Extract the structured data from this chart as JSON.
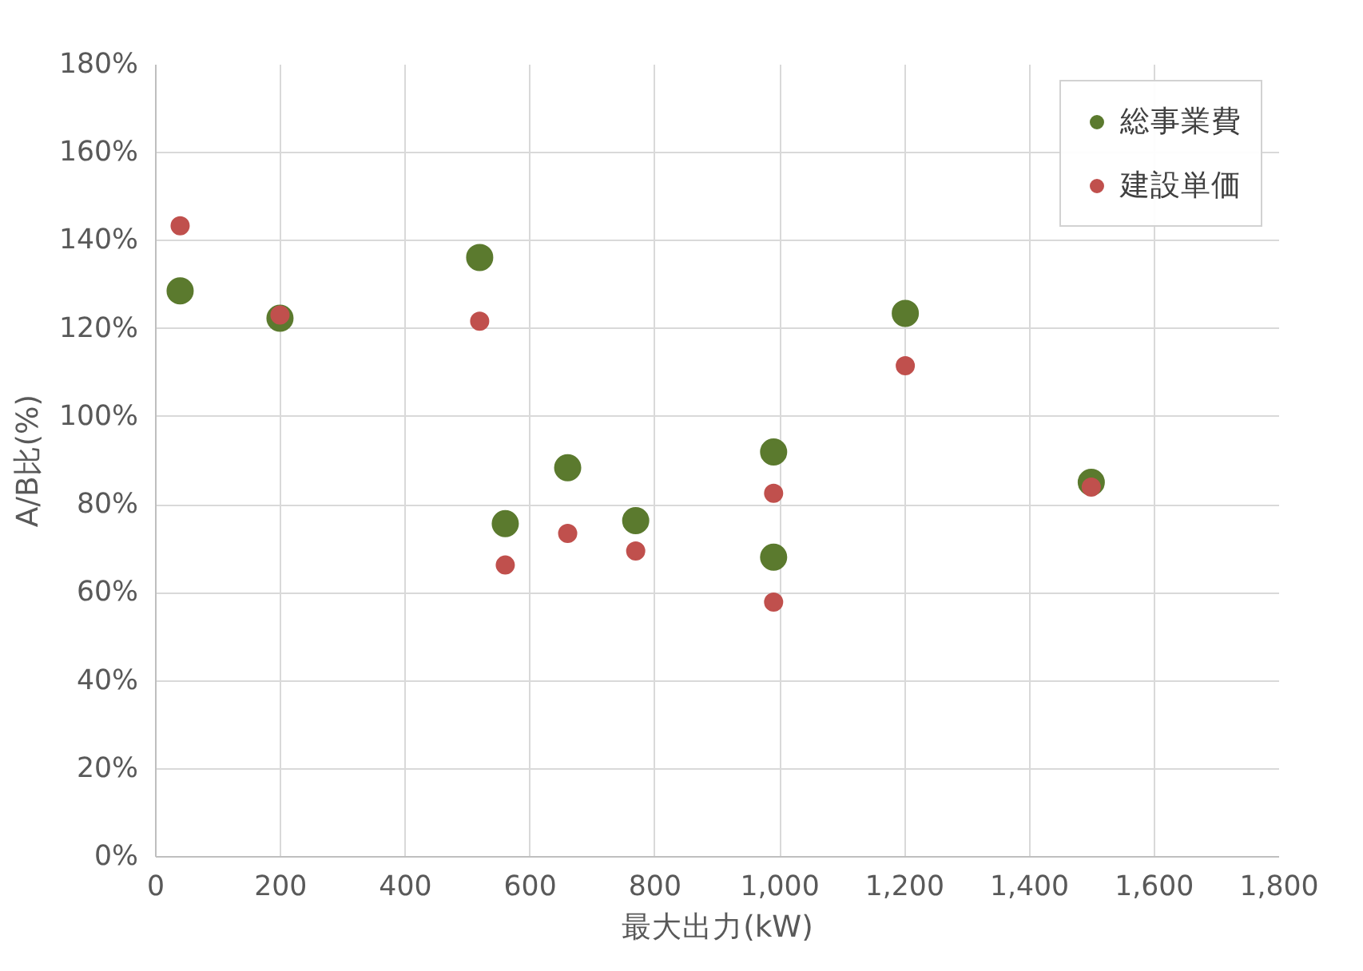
{
  "chart_data": {
    "type": "scatter",
    "xlabel": "最大出力(kW)",
    "ylabel": "A/B比(%)",
    "xlim": [
      0,
      1800
    ],
    "xticks": [
      0,
      {
        "value": 200,
        "label": "200"
      },
      {
        "value": 400,
        "label": "400"
      },
      {
        "value": 600,
        "label": "600"
      },
      {
        "value": 800,
        "label": "800"
      },
      {
        "value": 1000,
        "label": "1,000"
      },
      {
        "value": 1200,
        "label": "1,200"
      },
      {
        "value": 1400,
        "label": "1,400"
      },
      {
        "value": 1600,
        "label": "1,600"
      },
      {
        "value": 1800,
        "label": "1,800"
      }
    ],
    "ylim": [
      0,
      180
    ],
    "yticks": [
      {
        "value": 0,
        "label": "0%"
      },
      {
        "value": 20,
        "label": "20%"
      },
      {
        "value": 40,
        "label": "40%"
      },
      {
        "value": 60,
        "label": "60%"
      },
      {
        "value": 80,
        "label": "80%"
      },
      {
        "value": 100,
        "label": "100%"
      },
      {
        "value": 120,
        "label": "120%"
      },
      {
        "value": 140,
        "label": "140%"
      },
      {
        "value": 160,
        "label": "160%"
      },
      {
        "value": 180,
        "label": "180%"
      }
    ],
    "grid": true,
    "legend": "top right",
    "marker": "circle",
    "series": [
      {
        "name": "総事業費",
        "color": "#5b7a2e",
        "x": [
          39,
          199,
          519,
          560,
          660,
          769,
          990,
          990,
          1201,
          1499
        ],
        "values": [
          128.6,
          122.4,
          136.2,
          75.7,
          88.4,
          76.4,
          92,
          68.1,
          123.5,
          85.1
        ]
      },
      {
        "name": "建設単価",
        "color": "#c0504d",
        "x": [
          39,
          199,
          519,
          560,
          660,
          769,
          990,
          990,
          1201,
          1499
        ],
        "values": [
          143.4,
          123.1,
          121.7,
          66.3,
          73.5,
          69.5,
          82.6,
          57.9,
          111.6,
          84
        ]
      }
    ]
  }
}
